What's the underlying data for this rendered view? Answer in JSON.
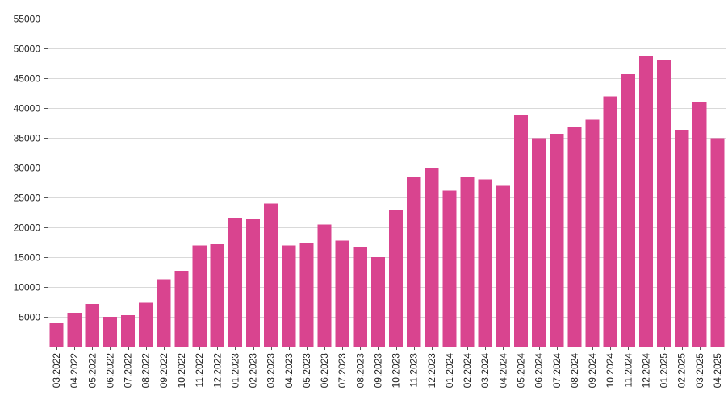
{
  "chart_data": {
    "type": "bar",
    "title": "",
    "xlabel": "",
    "ylabel": "",
    "ylim": [
      0,
      57500
    ],
    "yticks": [
      5000,
      10000,
      15000,
      20000,
      25000,
      30000,
      35000,
      40000,
      45000,
      50000,
      55000
    ],
    "grid": true,
    "bar_color": "#d9448f",
    "categories": [
      "03.2022",
      "04.2022",
      "05.2022",
      "06.2022",
      "07.2022",
      "08.2022",
      "09.2022",
      "10.2022",
      "11.2022",
      "12.2022",
      "01.2023",
      "02.2023",
      "03.2023",
      "04.2023",
      "05.2023",
      "06.2023",
      "07.2023",
      "08.2023",
      "09.2023",
      "10.2023",
      "11.2023",
      "12.2023",
      "01.2024",
      "02.2024",
      "03.2024",
      "04.2024",
      "05.2024",
      "06.2024",
      "07.2024",
      "08.2024",
      "09.2024",
      "10.2024",
      "11.2024",
      "12.2024",
      "01.2025",
      "02.2025",
      "03.2025",
      "04.2025"
    ],
    "values": [
      3900,
      5700,
      7200,
      5000,
      5300,
      7400,
      11300,
      12700,
      17000,
      17200,
      21600,
      21400,
      24000,
      17000,
      17400,
      20500,
      17800,
      16800,
      15000,
      22900,
      28500,
      30000,
      26200,
      28500,
      28100,
      27000,
      38800,
      35000,
      35700,
      36800,
      38100,
      42000,
      45700,
      48700,
      48100,
      36400,
      41100,
      35000
    ]
  }
}
